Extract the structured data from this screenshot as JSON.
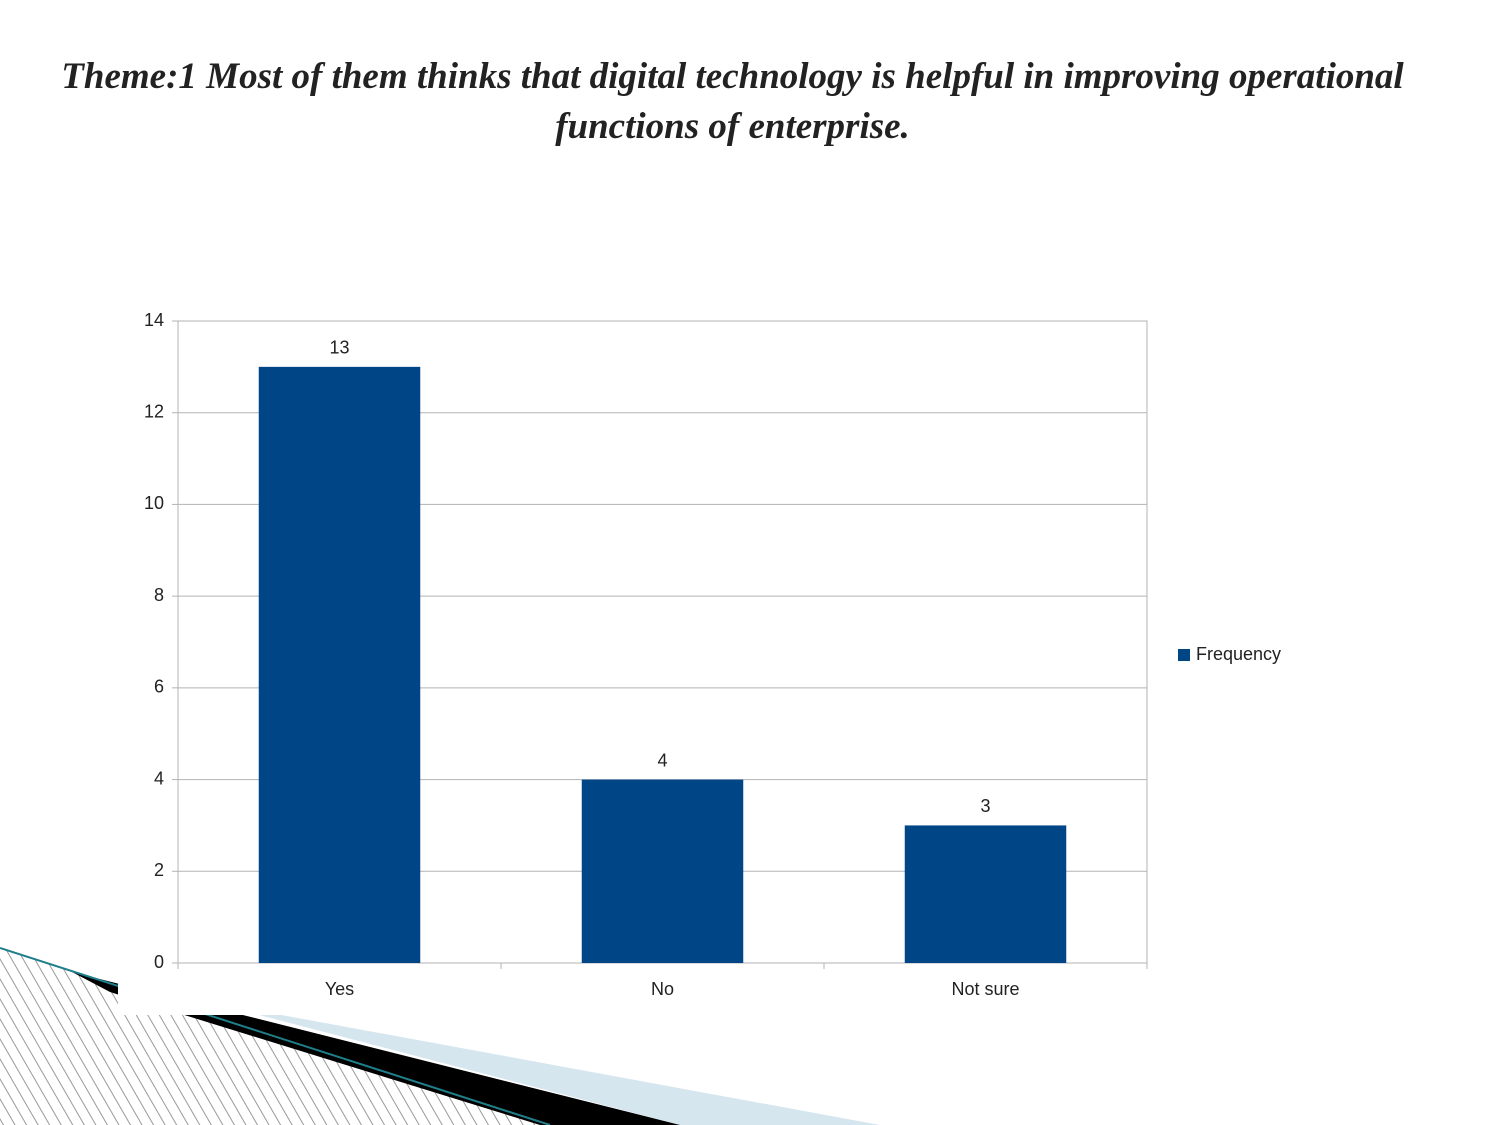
{
  "chart_data": {
    "type": "bar",
    "title": "Theme:1 Most of them thinks that digital technology is helpful in improving operational functions of enterprise.",
    "categories": [
      "Yes",
      "No",
      "Not sure"
    ],
    "series": [
      {
        "name": "Frequency",
        "color": "#004586",
        "values": [
          13,
          4,
          3
        ]
      }
    ],
    "ylim": [
      0,
      14
    ],
    "yticks": [
      0,
      2,
      4,
      6,
      8,
      10,
      12,
      14
    ],
    "grid": true,
    "legend": "right",
    "data_labels": true
  }
}
